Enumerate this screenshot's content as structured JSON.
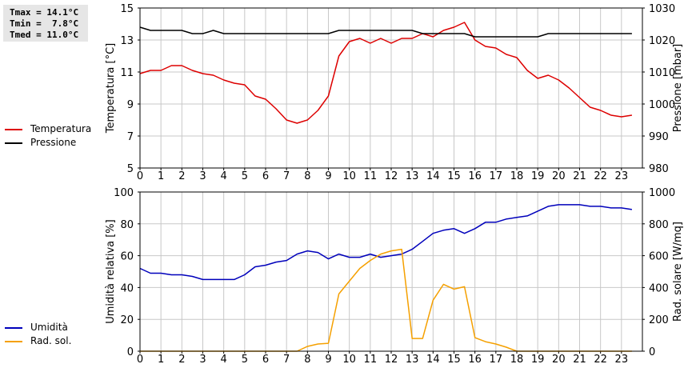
{
  "stats": {
    "tmax": "Tmax = 14.1°C",
    "tmin": "Tmin =  7.8°C",
    "tmed": "Tmed = 11.0°C"
  },
  "colors": {
    "temperature": "#dd0000",
    "pressure": "#000000",
    "humidity": "#0000bb",
    "radiation": "#f5a000",
    "grid": "#c8c8c8"
  },
  "legend_top": [
    {
      "label": "Temperatura",
      "color": "#dd0000"
    },
    {
      "label": "Pressione",
      "color": "#000000"
    }
  ],
  "legend_bottom": [
    {
      "label": "Umidità",
      "color": "#0000bb"
    },
    {
      "label": "Rad. sol.",
      "color": "#f5a000"
    }
  ],
  "chart_data": [
    {
      "type": "line",
      "ylabel": "Temperatura [°C]",
      "y2label": "Pressione [mbar]",
      "ylim": [
        5,
        15
      ],
      "y2lim": [
        980,
        1030
      ],
      "yticks": [
        5,
        7,
        9,
        11,
        13,
        15
      ],
      "y2ticks": [
        980,
        990,
        1000,
        1010,
        1020,
        1030
      ],
      "xlim": [
        0,
        24
      ],
      "xticks": [
        "0",
        "1",
        "2",
        "3",
        "4",
        "5",
        "6",
        "7",
        "8",
        "9",
        "10",
        "11",
        "12",
        "13",
        "14",
        "15",
        "16",
        "17",
        "18",
        "19",
        "20",
        "21",
        "22",
        "23"
      ],
      "grid": true,
      "series": [
        {
          "name": "Temperatura",
          "axis": "left",
          "x": [
            0,
            0.5,
            1,
            1.5,
            2,
            2.5,
            3,
            3.5,
            4,
            4.5,
            5,
            5.5,
            6,
            6.5,
            7,
            7.5,
            8,
            8.5,
            9,
            9.5,
            10,
            10.5,
            11,
            11.5,
            12,
            12.5,
            13,
            13.5,
            14,
            14.5,
            15,
            15.5,
            16,
            16.5,
            17,
            17.5,
            18,
            18.5,
            19,
            19.5,
            20,
            20.5,
            21,
            21.5,
            22,
            22.5,
            23,
            23.5
          ],
          "values": [
            10.9,
            11.1,
            11.1,
            11.4,
            11.4,
            11.1,
            10.9,
            10.8,
            10.5,
            10.3,
            10.2,
            9.5,
            9.3,
            8.7,
            8.0,
            7.8,
            8.0,
            8.6,
            9.5,
            12.0,
            12.9,
            13.1,
            12.8,
            13.1,
            12.8,
            13.1,
            13.1,
            13.4,
            13.2,
            13.6,
            13.8,
            14.1,
            13.0,
            12.6,
            12.5,
            12.1,
            11.9,
            11.1,
            10.6,
            10.8,
            10.5,
            10.0,
            9.4,
            8.8,
            8.6,
            8.3,
            8.2,
            8.3
          ]
        },
        {
          "name": "Pressione",
          "axis": "right",
          "x": [
            0,
            0.5,
            1,
            1.5,
            2,
            2.5,
            3,
            3.5,
            4,
            4.5,
            5,
            5.5,
            6,
            6.5,
            7,
            7.5,
            8,
            8.5,
            9,
            9.5,
            10,
            10.5,
            11,
            11.5,
            12,
            12.5,
            13,
            13.5,
            14,
            14.5,
            15,
            15.5,
            16,
            16.5,
            17,
            17.5,
            18,
            18.5,
            19,
            19.5,
            20,
            20.5,
            21,
            21.5,
            22,
            22.5,
            23,
            23.5
          ],
          "values": [
            1024,
            1023,
            1023,
            1023,
            1023,
            1022,
            1022,
            1023,
            1022,
            1022,
            1022,
            1022,
            1022,
            1022,
            1022,
            1022,
            1022,
            1022,
            1022,
            1023,
            1023,
            1023,
            1023,
            1023,
            1023,
            1023,
            1023,
            1022,
            1022,
            1022,
            1022,
            1022,
            1021,
            1021,
            1021,
            1021,
            1021,
            1021,
            1021,
            1022,
            1022,
            1022,
            1022,
            1022,
            1022,
            1022,
            1022,
            1022
          ]
        }
      ]
    },
    {
      "type": "line",
      "ylabel": "Umidità relativa [%]",
      "y2label": "Rad. solare [W/mq]",
      "ylim": [
        0,
        100
      ],
      "y2lim": [
        0,
        1000
      ],
      "yticks": [
        0,
        20,
        40,
        60,
        80,
        100
      ],
      "y2ticks": [
        0,
        200,
        400,
        600,
        800,
        1000
      ],
      "xlim": [
        0,
        24
      ],
      "xticks": [
        "0",
        "1",
        "2",
        "3",
        "4",
        "5",
        "6",
        "7",
        "8",
        "9",
        "10",
        "11",
        "12",
        "13",
        "14",
        "15",
        "16",
        "17",
        "18",
        "19",
        "20",
        "21",
        "22",
        "23"
      ],
      "grid": true,
      "series": [
        {
          "name": "Umidità",
          "axis": "left",
          "x": [
            0,
            0.5,
            1,
            1.5,
            2,
            2.5,
            3,
            3.5,
            4,
            4.5,
            5,
            5.5,
            6,
            6.5,
            7,
            7.5,
            8,
            8.5,
            9,
            9.5,
            10,
            10.5,
            11,
            11.5,
            12,
            12.5,
            13,
            13.5,
            14,
            14.5,
            15,
            15.5,
            16,
            16.5,
            17,
            17.5,
            18,
            18.5,
            19,
            19.5,
            20,
            20.5,
            21,
            21.5,
            22,
            22.5,
            23,
            23.5
          ],
          "values": [
            52,
            49,
            49,
            48,
            48,
            47,
            45,
            45,
            45,
            45,
            48,
            53,
            54,
            56,
            57,
            61,
            63,
            62,
            58,
            61,
            59,
            59,
            61,
            59,
            60,
            61,
            64,
            69,
            74,
            76,
            77,
            74,
            77,
            81,
            81,
            83,
            84,
            85,
            88,
            91,
            92,
            92,
            92,
            91,
            91,
            90,
            90,
            89
          ]
        },
        {
          "name": "Rad. sol.",
          "axis": "right",
          "x": [
            0,
            0.5,
            1,
            1.5,
            2,
            2.5,
            3,
            3.5,
            4,
            4.5,
            5,
            5.5,
            6,
            6.5,
            7,
            7.5,
            8,
            8.5,
            9,
            9.5,
            10,
            10.5,
            11,
            11.5,
            12,
            12.5,
            13,
            13.5,
            14,
            14.5,
            15,
            15.5,
            16,
            16.5,
            17,
            17.5,
            18,
            18.5,
            19,
            19.5,
            20,
            20.5,
            21,
            21.5,
            22,
            22.5,
            23,
            23.5
          ],
          "values": [
            0,
            0,
            0,
            0,
            0,
            0,
            0,
            0,
            0,
            0,
            0,
            0,
            0,
            0,
            0,
            0,
            30,
            45,
            50,
            360,
            440,
            520,
            570,
            610,
            630,
            640,
            80,
            80,
            320,
            420,
            390,
            405,
            85,
            60,
            45,
            25,
            0,
            0,
            0,
            0,
            0,
            0,
            0,
            0,
            0,
            0,
            0,
            0
          ]
        }
      ]
    }
  ]
}
